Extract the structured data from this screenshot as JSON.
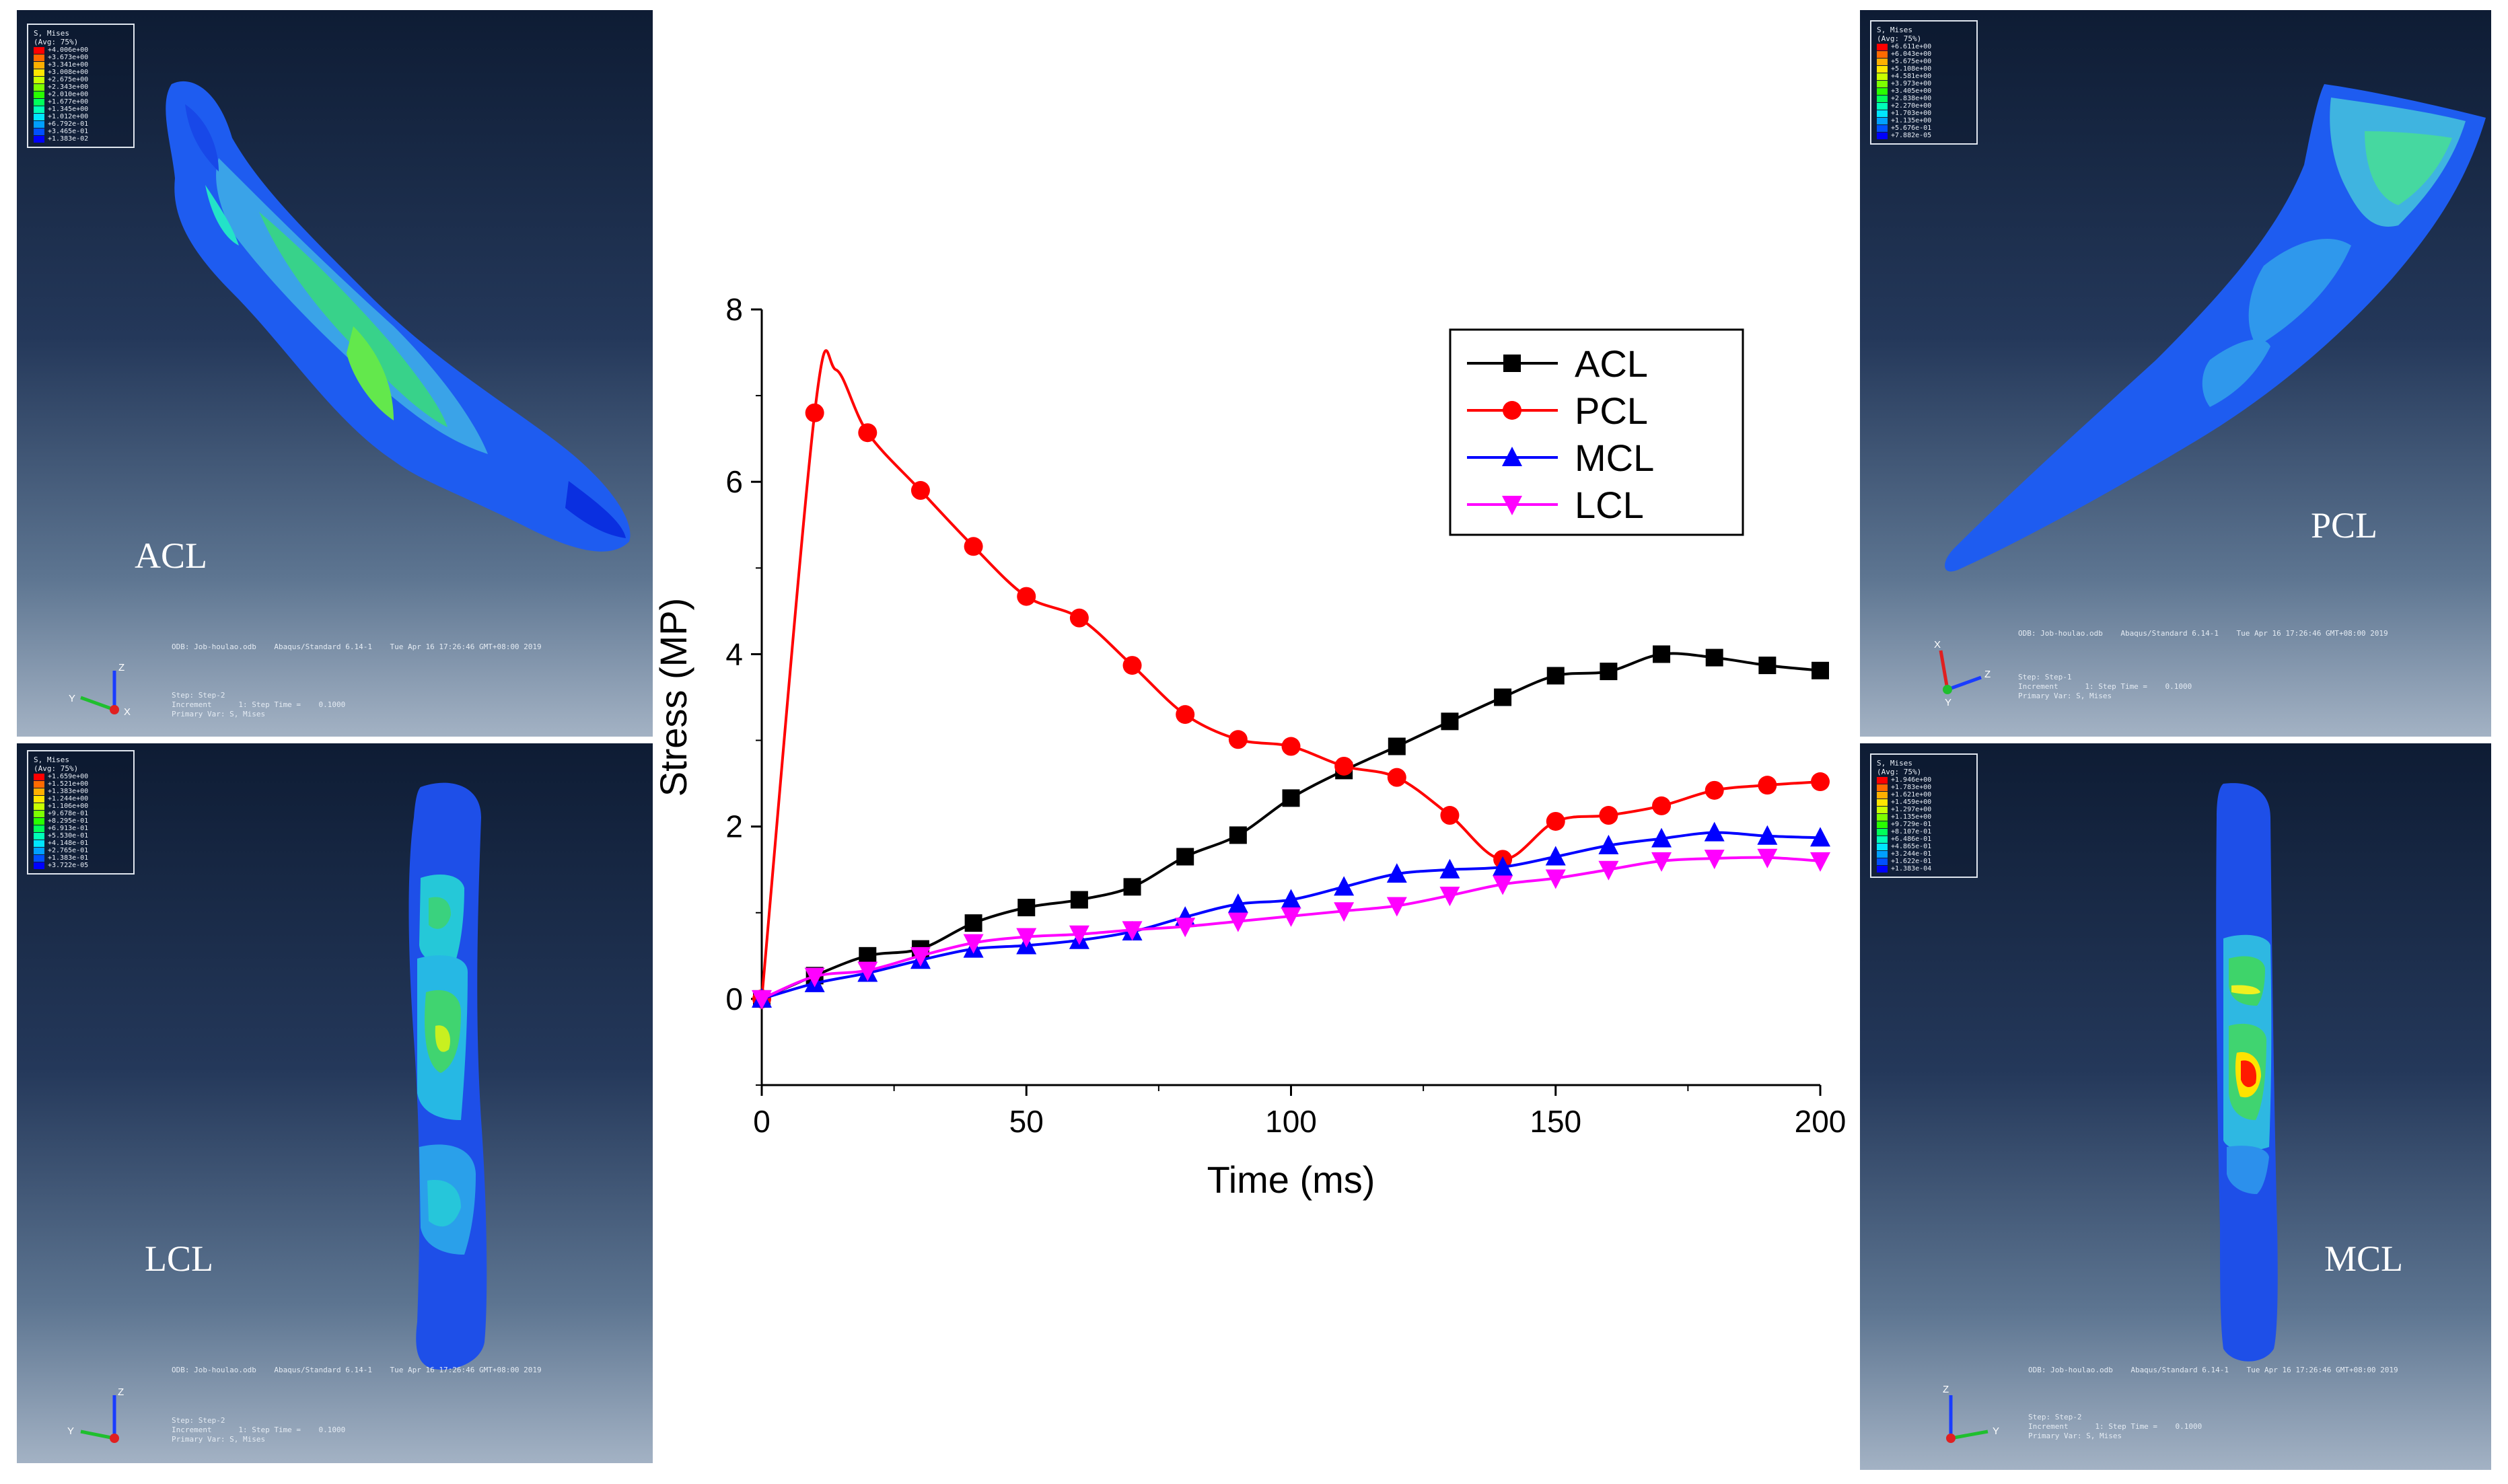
{
  "panels": {
    "acl": {
      "label": "ACL",
      "legend_title": [
        "S, Mises",
        "(Avg: 75%)"
      ],
      "legend_values": [
        "+4.006e+00",
        "+3.673e+00",
        "+3.341e+00",
        "+3.008e+00",
        "+2.675e+00",
        "+2.343e+00",
        "+2.010e+00",
        "+1.677e+00",
        "+1.345e+00",
        "+1.012e+00",
        "+6.792e-01",
        "+3.465e-01",
        "+1.383e-02"
      ],
      "odb_line": "ODB: Job-houlao.odb    Abaqus/Standard 6.14-1    Tue Apr 16 17:26:46 GMT+08:00 2019",
      "step_lines": [
        "Step: Step-2",
        "Increment      1: Step Time =    0.1000",
        "Primary Var: S, Mises"
      ],
      "triad": [
        "Z",
        "Y",
        "X"
      ]
    },
    "pcl": {
      "label": "PCL",
      "legend_title": [
        "S, Mises",
        "(Avg: 75%)"
      ],
      "legend_values": [
        "+6.611e+00",
        "+6.043e+00",
        "+5.675e+00",
        "+5.108e+00",
        "+4.581e+00",
        "+3.973e+00",
        "+3.405e+00",
        "+2.838e+00",
        "+2.270e+00",
        "+1.703e+00",
        "+1.135e+00",
        "+5.676e-01",
        "+7.882e-05"
      ],
      "odb_line": "ODB: Job-houlao.odb    Abaqus/Standard 6.14-1    Tue Apr 16 17:26:46 GMT+08:00 2019",
      "step_lines": [
        "Step: Step-1",
        "Increment      1: Step Time =    0.1000",
        "Primary Var: S, Mises"
      ],
      "triad": [
        "X",
        "Z",
        "Y"
      ]
    },
    "lcl": {
      "label": "LCL",
      "legend_title": [
        "S, Mises",
        "(Avg: 75%)"
      ],
      "legend_values": [
        "+1.659e+00",
        "+1.521e+00",
        "+1.383e+00",
        "+1.244e+00",
        "+1.106e+00",
        "+9.678e-01",
        "+8.295e-01",
        "+6.913e-01",
        "+5.530e-01",
        "+4.148e-01",
        "+2.765e-01",
        "+1.383e-01",
        "+3.722e-05"
      ],
      "odb_line": "ODB: Job-houlao.odb    Abaqus/Standard 6.14-1    Tue Apr 16 17:26:46 GMT+08:00 2019",
      "step_lines": [
        "Step: Step-2",
        "Increment      1: Step Time =    0.1000",
        "Primary Var: S, Mises"
      ],
      "triad": [
        "Z",
        "Y",
        ""
      ]
    },
    "mcl": {
      "label": "MCL",
      "legend_title": [
        "S, Mises",
        "(Avg: 75%)"
      ],
      "legend_values": [
        "+1.946e+00",
        "+1.783e+00",
        "+1.621e+00",
        "+1.459e+00",
        "+1.297e+00",
        "+1.135e+00",
        "+9.729e-01",
        "+8.107e-01",
        "+6.486e-01",
        "+4.865e-01",
        "+3.244e-01",
        "+1.622e-01",
        "+1.383e-04"
      ],
      "odb_line": "ODB: Job-houlao.odb    Abaqus/Standard 6.14-1    Tue Apr 16 17:26:46 GMT+08:00 2019",
      "step_lines": [
        "Step: Step-2",
        "Increment      1: Step Time =    0.1000",
        "Primary Var: S, Mises"
      ],
      "triad": [
        "Z",
        "Y",
        ""
      ]
    }
  },
  "colors": {
    "acl": "#000000",
    "pcl": "#ff0000",
    "mcl": "#0000ff",
    "lcl": "#ff00ff",
    "contour": [
      "#ff0000",
      "#ff6a00",
      "#ffb000",
      "#ffe600",
      "#c8ff00",
      "#7dff00",
      "#28ff00",
      "#00ff5a",
      "#00ffb8",
      "#00e6ff",
      "#00a0ff",
      "#0050ff",
      "#0000ff"
    ]
  },
  "chart_data": {
    "type": "line",
    "xlabel": "Time (ms)",
    "ylabel": "Stress (MP)",
    "xlim": [
      0,
      200
    ],
    "ylim": [
      -1,
      8
    ],
    "xticks": [
      0,
      50,
      100,
      150,
      200
    ],
    "yticks": [
      0,
      2,
      4,
      6,
      8
    ],
    "legend_position": "top-right",
    "x": [
      0,
      10,
      20,
      30,
      40,
      50,
      60,
      70,
      80,
      90,
      100,
      110,
      120,
      130,
      140,
      150,
      160,
      170,
      180,
      190,
      200
    ],
    "series": [
      {
        "name": "ACL",
        "marker": "square",
        "values": [
          0,
          0.27,
          0.5,
          0.58,
          0.88,
          1.06,
          1.15,
          1.3,
          1.65,
          1.9,
          2.33,
          2.65,
          2.93,
          3.22,
          3.5,
          3.75,
          3.8,
          4.0,
          3.96,
          3.87,
          3.81
        ]
      },
      {
        "name": "PCL",
        "marker": "circle",
        "values": [
          0,
          6.8,
          6.57,
          5.9,
          5.25,
          4.67,
          4.42,
          3.87,
          3.3,
          3.01,
          2.93,
          2.7,
          2.57,
          2.13,
          1.62,
          2.06,
          2.13,
          2.24,
          2.42,
          2.48,
          2.52
        ],
        "peak": [
          14,
          7.3
        ]
      },
      {
        "name": "MCL",
        "marker": "triangle-up",
        "values": [
          0,
          0.18,
          0.3,
          0.45,
          0.58,
          0.62,
          0.68,
          0.78,
          0.95,
          1.1,
          1.15,
          1.3,
          1.45,
          1.5,
          1.53,
          1.65,
          1.78,
          1.86,
          1.93,
          1.89,
          1.87
        ]
      },
      {
        "name": "LCL",
        "marker": "triangle-down",
        "values": [
          0,
          0.26,
          0.33,
          0.5,
          0.65,
          0.72,
          0.75,
          0.8,
          0.84,
          0.9,
          0.96,
          1.02,
          1.08,
          1.2,
          1.33,
          1.4,
          1.5,
          1.6,
          1.63,
          1.64,
          1.6
        ]
      }
    ]
  }
}
